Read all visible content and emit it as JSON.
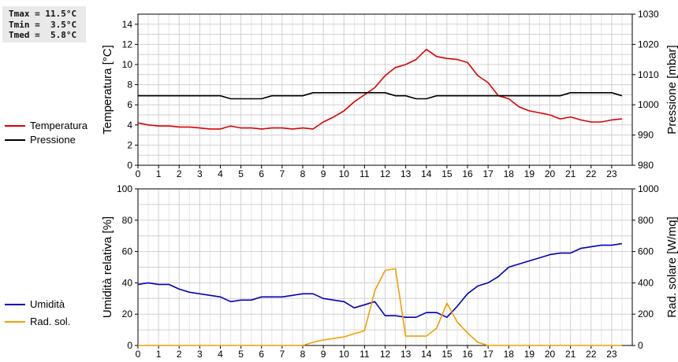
{
  "stats": {
    "tmax": "Tmax = 11.5°C",
    "tmin": "Tmin =  3.5°C",
    "tmed": "Tmed =  5.8°C"
  },
  "colors": {
    "temperature": "#dd0000",
    "pressure": "#000000",
    "humidity": "#0000bb",
    "radiation": "#f0a000",
    "grid": "#d0d0d0"
  },
  "chart_data": [
    {
      "type": "line",
      "x_ticks": [
        "0",
        "1",
        "2",
        "3",
        "4",
        "5",
        "6",
        "7",
        "8",
        "9",
        "10",
        "11",
        "12",
        "13",
        "14",
        "15",
        "16",
        "17",
        "18",
        "19",
        "20",
        "21",
        "22",
        "23"
      ],
      "xlim": [
        0,
        24
      ],
      "ylabel": "Temperatura [°C]",
      "ylim": [
        0,
        15
      ],
      "y_ticks": [
        0,
        2,
        4,
        6,
        8,
        10,
        12,
        14
      ],
      "y2label": "Pressione [mbar]",
      "y2lim": [
        980,
        1030
      ],
      "y2_ticks": [
        980,
        990,
        1000,
        1010,
        1020,
        1030
      ],
      "grid": true,
      "legend_position": "left",
      "series": [
        {
          "name": "Temperatura",
          "axis": "left",
          "color": "#dd0000",
          "x": [
            0,
            0.5,
            1,
            1.5,
            2,
            2.5,
            3,
            3.5,
            4,
            4.5,
            5,
            5.5,
            6,
            6.5,
            7,
            7.5,
            8,
            8.5,
            9,
            9.5,
            10,
            10.5,
            11,
            11.5,
            12,
            12.5,
            13,
            13.5,
            14,
            14.5,
            15,
            15.5,
            16,
            16.5,
            17,
            17.5,
            18,
            18.5,
            19,
            19.5,
            20,
            20.5,
            21,
            21.5,
            22,
            22.5,
            23,
            23.5
          ],
          "y": [
            4.2,
            4.0,
            3.9,
            3.9,
            3.8,
            3.8,
            3.7,
            3.6,
            3.6,
            3.9,
            3.7,
            3.7,
            3.6,
            3.7,
            3.7,
            3.6,
            3.7,
            3.6,
            4.3,
            4.8,
            5.4,
            6.3,
            7.0,
            7.7,
            8.9,
            9.7,
            10.0,
            10.5,
            11.5,
            10.8,
            10.6,
            10.5,
            10.2,
            8.9,
            8.2,
            6.9,
            6.6,
            5.8,
            5.4,
            5.2,
            5.0,
            4.6,
            4.8,
            4.5,
            4.3,
            4.3,
            4.5,
            4.6
          ]
        },
        {
          "name": "Pressione",
          "axis": "right",
          "color": "#000000",
          "x": [
            0,
            0.5,
            1,
            1.5,
            2,
            2.5,
            3,
            3.5,
            4,
            4.5,
            5,
            5.5,
            6,
            6.5,
            7,
            7.5,
            8,
            8.5,
            9,
            9.5,
            10,
            10.5,
            11,
            11.5,
            12,
            12.5,
            13,
            13.5,
            14,
            14.5,
            15,
            15.5,
            16,
            16.5,
            17,
            17.5,
            18,
            18.5,
            19,
            19.5,
            20,
            20.5,
            21,
            21.5,
            22,
            22.5,
            23,
            23.5
          ],
          "y": [
            1003,
            1003,
            1003,
            1003,
            1003,
            1003,
            1003,
            1003,
            1003,
            1002,
            1002,
            1002,
            1002,
            1003,
            1003,
            1003,
            1003,
            1004,
            1004,
            1004,
            1004,
            1004,
            1004,
            1004,
            1004,
            1003,
            1003,
            1002,
            1002,
            1003,
            1003,
            1003,
            1003,
            1003,
            1003,
            1003,
            1003,
            1003,
            1003,
            1003,
            1003,
            1003,
            1004,
            1004,
            1004,
            1004,
            1004,
            1003
          ]
        }
      ]
    },
    {
      "type": "line",
      "x_ticks": [
        "0",
        "1",
        "2",
        "3",
        "4",
        "5",
        "6",
        "7",
        "8",
        "9",
        "10",
        "11",
        "12",
        "13",
        "14",
        "15",
        "16",
        "17",
        "18",
        "19",
        "20",
        "21",
        "22",
        "23"
      ],
      "xlim": [
        0,
        24
      ],
      "ylabel": "Umidità relativa [%]",
      "ylim": [
        0,
        100
      ],
      "y_ticks": [
        0,
        20,
        40,
        60,
        80,
        100
      ],
      "y2label": "Rad. solare [W/mq]",
      "y2lim": [
        0,
        1000
      ],
      "y2_ticks": [
        0,
        200,
        400,
        600,
        800,
        1000
      ],
      "grid": true,
      "legend_position": "left",
      "series": [
        {
          "name": "Umidità",
          "axis": "left",
          "color": "#0000bb",
          "x": [
            0,
            0.5,
            1,
            1.5,
            2,
            2.5,
            3,
            3.5,
            4,
            4.5,
            5,
            5.5,
            6,
            6.5,
            7,
            7.5,
            8,
            8.5,
            9,
            9.5,
            10,
            10.5,
            11,
            11.5,
            12,
            12.5,
            13,
            13.5,
            14,
            14.5,
            15,
            15.5,
            16,
            16.5,
            17,
            17.5,
            18,
            18.5,
            19,
            19.5,
            20,
            20.5,
            21,
            21.5,
            22,
            22.5,
            23,
            23.5
          ],
          "y": [
            39,
            40,
            39,
            39,
            36,
            34,
            33,
            32,
            31,
            28,
            29,
            29,
            31,
            31,
            31,
            32,
            33,
            33,
            30,
            29,
            28,
            24,
            26,
            28,
            19,
            19,
            18,
            18,
            21,
            21,
            18,
            25,
            33,
            38,
            40,
            44,
            50,
            52,
            54,
            56,
            58,
            59,
            59,
            62,
            63,
            64,
            64,
            65
          ]
        },
        {
          "name": "Rad. sol.",
          "axis": "right",
          "color": "#f0a000",
          "x": [
            0,
            0.5,
            1,
            1.5,
            2,
            2.5,
            3,
            3.5,
            4,
            4.5,
            5,
            5.5,
            6,
            6.5,
            7,
            7.5,
            8,
            8.5,
            9,
            9.5,
            10,
            10.5,
            11,
            11.5,
            12,
            12.5,
            13,
            13.5,
            14,
            14.5,
            15,
            15.5,
            16,
            16.5,
            17,
            17.5,
            18,
            18.5,
            19,
            19.5,
            20,
            20.5,
            21,
            21.5,
            22,
            22.5,
            23,
            23.5
          ],
          "y": [
            0,
            0,
            0,
            0,
            0,
            0,
            0,
            0,
            0,
            0,
            0,
            0,
            0,
            0,
            0,
            0,
            0,
            20,
            35,
            45,
            55,
            75,
            95,
            350,
            480,
            490,
            60,
            60,
            60,
            110,
            270,
            150,
            80,
            20,
            0,
            0,
            0,
            0,
            0,
            0,
            0,
            0,
            0,
            0,
            0,
            0,
            0,
            0
          ]
        }
      ]
    }
  ]
}
